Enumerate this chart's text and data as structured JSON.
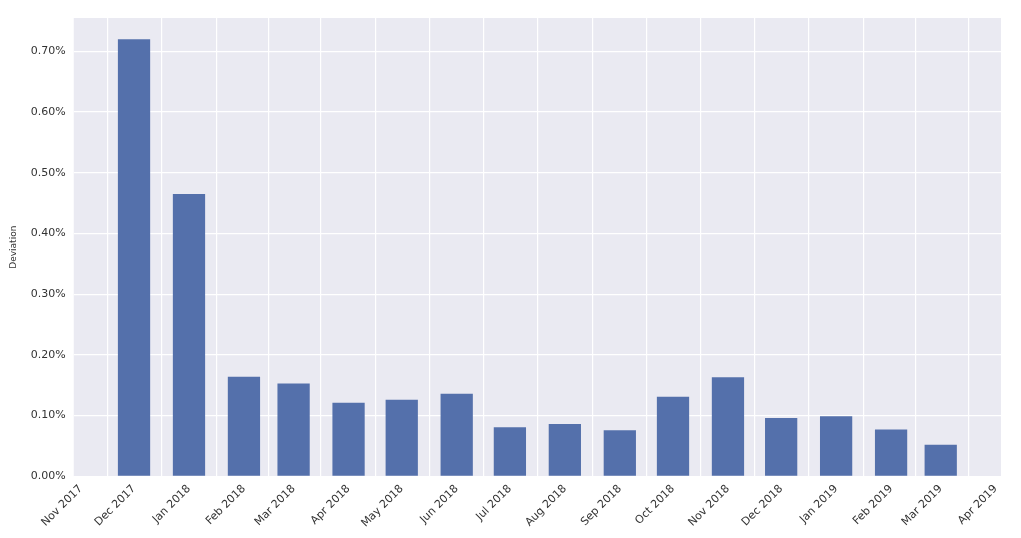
{
  "chart_data": {
    "type": "bar",
    "ylabel": "Deviation",
    "x": [
      "2017-12",
      "2018-01",
      "2018-02",
      "2018-03",
      "2018-04",
      "2018-05",
      "2018-06",
      "2018-07",
      "2018-08",
      "2018-09",
      "2018-10",
      "2018-11",
      "2018-12",
      "2019-01",
      "2019-02",
      "2019-03"
    ],
    "values": [
      0.72,
      0.465,
      0.164,
      0.153,
      0.121,
      0.126,
      0.136,
      0.081,
      0.086,
      0.076,
      0.131,
      0.163,
      0.096,
      0.099,
      0.077,
      0.052
    ],
    "color": "#5470ab",
    "xlim": [
      "2017-10-28",
      "2019-04-04"
    ],
    "xticks": [
      {
        "value": "2017-11",
        "label": "Nov 2017"
      },
      {
        "value": "2017-12",
        "label": "Dec 2017"
      },
      {
        "value": "2018-01",
        "label": "Jan 2018"
      },
      {
        "value": "2018-02",
        "label": "Feb 2018"
      },
      {
        "value": "2018-03",
        "label": "Mar 2018"
      },
      {
        "value": "2018-04",
        "label": "Apr 2018"
      },
      {
        "value": "2018-05",
        "label": "May 2018"
      },
      {
        "value": "2018-06",
        "label": "Jun 2018"
      },
      {
        "value": "2018-07",
        "label": "Jul 2018"
      },
      {
        "value": "2018-08",
        "label": "Aug 2018"
      },
      {
        "value": "2018-09",
        "label": "Sep 2018"
      },
      {
        "value": "2018-10",
        "label": "Oct 2018"
      },
      {
        "value": "2018-11",
        "label": "Nov 2018"
      },
      {
        "value": "2018-12",
        "label": "Dec 2018"
      },
      {
        "value": "2019-01",
        "label": "Jan 2019"
      },
      {
        "value": "2019-02",
        "label": "Feb 2019"
      },
      {
        "value": "2019-03",
        "label": "Mar 2019"
      },
      {
        "value": "2019-04",
        "label": "Apr 2019"
      }
    ],
    "ylim": [
      0,
      0.755
    ],
    "yticks": [
      {
        "value": 0,
        "label": "0.00%"
      },
      {
        "value": 0.1,
        "label": "0.10%"
      },
      {
        "value": 0.2,
        "label": "0.20%"
      },
      {
        "value": 0.3,
        "label": "0.30%"
      },
      {
        "value": 0.4,
        "label": "0.40%"
      },
      {
        "value": 0.5,
        "label": "0.50%"
      },
      {
        "value": 0.6,
        "label": "0.60%"
      },
      {
        "value": 0.7,
        "label": "0.70%"
      }
    ],
    "grid": true
  }
}
